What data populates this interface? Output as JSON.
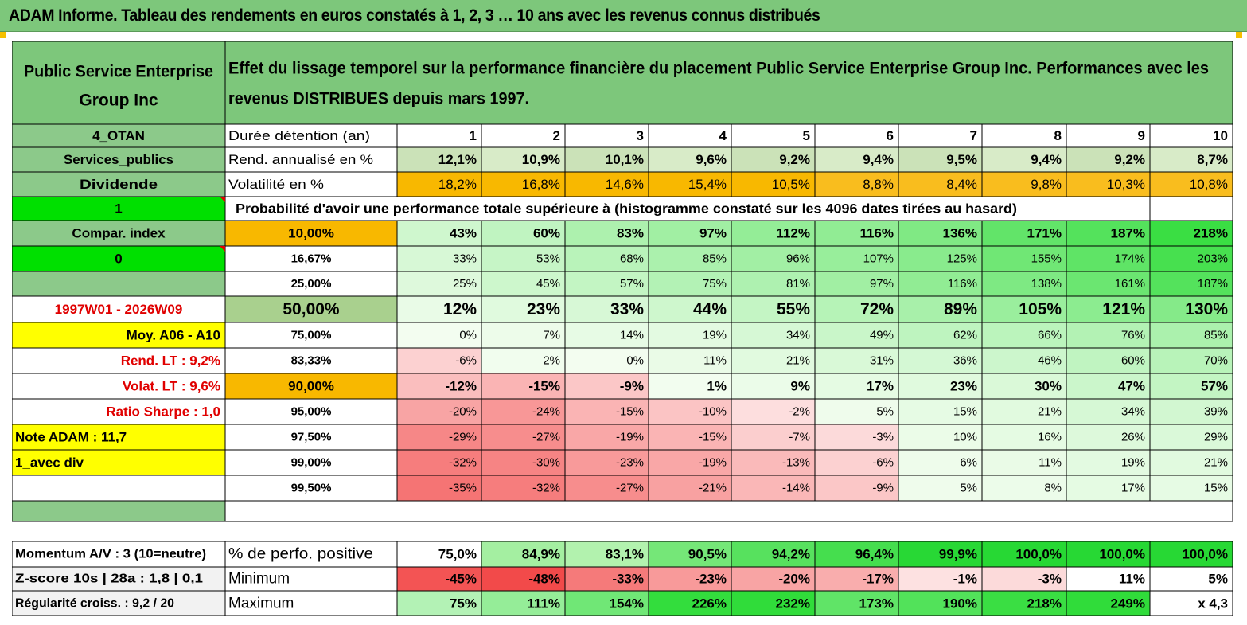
{
  "title": "ADAM Informe. Tableau des rendements en euros constatés à 1, 2, 3 … 10 ans avec les revenus connus distribués",
  "header": {
    "asset_name": "Public Service Enterprise Group Inc",
    "description": "Effet du lissage temporel sur la performance financière du placement Public Service Enterprise Group Inc. Performances avec les revenus DISTRIBUES depuis mars 1997."
  },
  "durations_label": "Durée détention (an)",
  "durations": [
    "1",
    "2",
    "3",
    "4",
    "5",
    "6",
    "7",
    "8",
    "9",
    "10"
  ],
  "summary_rows": [
    {
      "side": "4_OTAN",
      "label": "",
      "values": [],
      "key": "durations"
    },
    {
      "side": "Services_publics",
      "label": "Rend. annualisé en %",
      "values": [
        "12,1%",
        "10,9%",
        "10,1%",
        "9,6%",
        "9,2%",
        "9,4%",
        "9,5%",
        "9,4%",
        "9,2%",
        "8,7%"
      ]
    },
    {
      "side": "Dividende",
      "label": "Volatilité en %",
      "values": [
        "18,2%",
        "16,8%",
        "14,6%",
        "15,4%",
        "10,5%",
        "8,8%",
        "8,4%",
        "9,8%",
        "10,3%",
        "10,8%"
      ]
    }
  ],
  "probability_title": "Probabilité d'avoir une performance totale supérieure à (histogramme constaté sur les 4096 dates tirées au hasard)",
  "probability_rows": [
    {
      "side": "1",
      "level": "",
      "values": []
    },
    {
      "side": "Compar. index",
      "level": "10,00%",
      "values": [
        "43%",
        "60%",
        "83%",
        "97%",
        "112%",
        "116%",
        "136%",
        "171%",
        "187%",
        "218%"
      ]
    },
    {
      "side": "0",
      "level": "16,67%",
      "values": [
        "33%",
        "53%",
        "68%",
        "85%",
        "96%",
        "107%",
        "125%",
        "155%",
        "174%",
        "203%"
      ]
    },
    {
      "side": "",
      "level": "25,00%",
      "values": [
        "25%",
        "45%",
        "57%",
        "75%",
        "81%",
        "97%",
        "116%",
        "138%",
        "161%",
        "187%"
      ]
    },
    {
      "side": "1997W01 - 2026W09",
      "level": "50,00%",
      "values": [
        "12%",
        "23%",
        "33%",
        "44%",
        "55%",
        "72%",
        "89%",
        "105%",
        "121%",
        "130%"
      ]
    },
    {
      "side": "Moy. A06 - A10",
      "level": "75,00%",
      "values": [
        "0%",
        "7%",
        "14%",
        "19%",
        "34%",
        "49%",
        "62%",
        "66%",
        "76%",
        "85%"
      ]
    },
    {
      "side": "Rend. LT :   9,2%",
      "level": "83,33%",
      "values": [
        "-6%",
        "2%",
        "0%",
        "11%",
        "21%",
        "31%",
        "36%",
        "46%",
        "60%",
        "70%"
      ]
    },
    {
      "side": "Volat. LT :   9,6%",
      "level": "90,00%",
      "values": [
        "-12%",
        "-15%",
        "-9%",
        "1%",
        "9%",
        "17%",
        "23%",
        "30%",
        "47%",
        "57%"
      ]
    },
    {
      "side": "Ratio Sharpe :    1,0",
      "level": "95,00%",
      "values": [
        "-20%",
        "-24%",
        "-15%",
        "-10%",
        "-2%",
        "5%",
        "15%",
        "21%",
        "34%",
        "39%"
      ]
    },
    {
      "side": "Note ADAM : 11,7",
      "level": "97,50%",
      "values": [
        "-29%",
        "-27%",
        "-19%",
        "-15%",
        "-7%",
        "-3%",
        "10%",
        "16%",
        "26%",
        "29%"
      ]
    },
    {
      "side": "1_avec div",
      "level": "99,00%",
      "values": [
        "-32%",
        "-30%",
        "-23%",
        "-19%",
        "-13%",
        "-6%",
        "6%",
        "11%",
        "19%",
        "21%"
      ]
    },
    {
      "side": "",
      "level": "99,50%",
      "values": [
        "-35%",
        "-32%",
        "-27%",
        "-21%",
        "-14%",
        "-9%",
        "5%",
        "8%",
        "17%",
        "15%"
      ]
    }
  ],
  "bottom_rows": [
    {
      "side": "Momentum A/V : 3 (10=neutre)",
      "label": "% de perfo. positive",
      "values": [
        "75,0%",
        "84,9%",
        "83,1%",
        "90,5%",
        "94,2%",
        "96,4%",
        "99,9%",
        "100,0%",
        "100,0%",
        "100,0%"
      ]
    },
    {
      "side": "Z-score 10s | 28a : 1,8 | 0,1",
      "label": "Minimum",
      "values": [
        "-45%",
        "-48%",
        "-33%",
        "-23%",
        "-20%",
        "-17%",
        "-1%",
        "-3%",
        "11%",
        "5%"
      ]
    },
    {
      "side": "Régularité croiss. : 9,2 / 20",
      "label": "Maximum",
      "values": [
        "75%",
        "111%",
        "154%",
        "226%",
        "232%",
        "173%",
        "190%",
        "218%",
        "249%",
        "x 4,3"
      ]
    }
  ],
  "colors": {
    "header_green": "#7dc77b",
    "side_green": "#8cc98a",
    "bright_green": "#00e000",
    "orange": "#f8b800",
    "yellow": "#ffff00",
    "red_text": "#e00000",
    "olive": "#a9d08e"
  }
}
